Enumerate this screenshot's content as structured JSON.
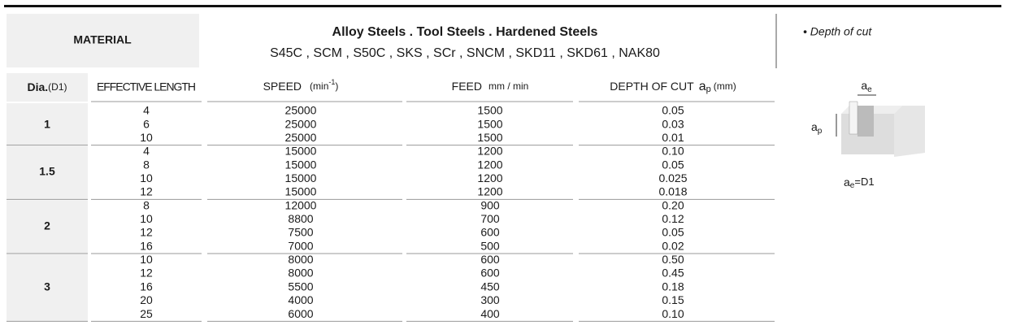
{
  "header": {
    "material_label": "MATERIAL",
    "title": "Alloy  Steels . Tool Steels . Hardened Steels",
    "grades": "S45C , SCM , S50C , SKS , SCr , SNCM , SKD11 , SKD61 , NAK80"
  },
  "columns": {
    "dia": {
      "label": "Dia.",
      "unit": "(D1)"
    },
    "length": "EFFECTIVE LENGTH",
    "speed": {
      "label": "SPEED",
      "unit_open": "(min",
      "exponent": "-1",
      "unit_close": ")"
    },
    "feed": {
      "label": "FEED",
      "unit": "mm / min"
    },
    "depth": {
      "label": "DEPTH OF CUT",
      "symbol": "a",
      "subscript": "p",
      "unit": "(mm)"
    }
  },
  "groups": [
    {
      "dia": "1",
      "rows": [
        [
          "4",
          "25000",
          "1500",
          "0.05"
        ],
        [
          "6",
          "25000",
          "1500",
          "0.03"
        ],
        [
          "10",
          "25000",
          "1500",
          "0.01"
        ]
      ]
    },
    {
      "dia": "1.5",
      "rows": [
        [
          "4",
          "15000",
          "1200",
          "0.10"
        ],
        [
          "8",
          "15000",
          "1200",
          "0.05"
        ],
        [
          "10",
          "15000",
          "1200",
          "0.025"
        ],
        [
          "12",
          "15000",
          "1200",
          "0.018"
        ]
      ]
    },
    {
      "dia": "2",
      "rows": [
        [
          "8",
          "12000",
          "900",
          "0.20"
        ],
        [
          "10",
          "8800",
          "700",
          "0.12"
        ],
        [
          "12",
          "7500",
          "600",
          "0.05"
        ],
        [
          "16",
          "7000",
          "500",
          "0.02"
        ]
      ]
    },
    {
      "dia": "3",
      "rows": [
        [
          "10",
          "8000",
          "600",
          "0.50"
        ],
        [
          "12",
          "8000",
          "600",
          "0.45"
        ],
        [
          "16",
          "5500",
          "450",
          "0.18"
        ],
        [
          "20",
          "4000",
          "300",
          "0.15"
        ],
        [
          "25",
          "6000",
          "400",
          "0.10"
        ]
      ]
    }
  ],
  "side": {
    "note": "• Depth of cut",
    "ae": {
      "symbol": "a",
      "subscript": "e"
    },
    "ap": {
      "symbol": "a",
      "subscript": "p"
    },
    "formula": {
      "symbol": "a",
      "subscript": "e",
      "rest": "=D1"
    }
  }
}
